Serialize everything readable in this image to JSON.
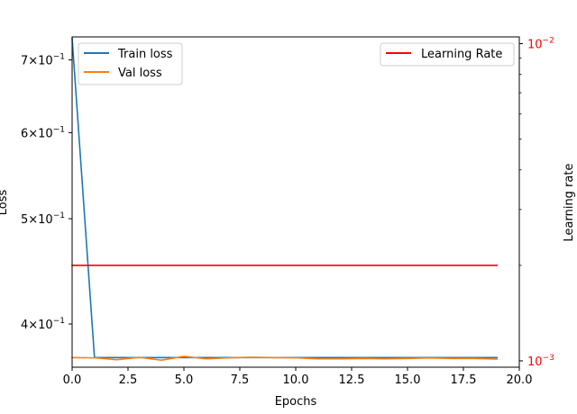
{
  "chart_data": {
    "type": "line",
    "title": "",
    "xlabel": "Epochs",
    "ylabel": "Loss",
    "y2label": "Learning rate",
    "xlim": [
      0,
      20
    ],
    "ylim": [
      0.365,
      0.735
    ],
    "yscale": "log",
    "y2lim": [
      0.000955,
      0.0105
    ],
    "y2scale": "log",
    "x_ticks": [
      "0.0",
      "2.5",
      "5.0",
      "7.5",
      "10.0",
      "12.5",
      "15.0",
      "17.5",
      "20.0"
    ],
    "x_tick_values": [
      0,
      2.5,
      5,
      7.5,
      10,
      12.5,
      15,
      17.5,
      20
    ],
    "y_ticks": [
      {
        "value": 0.7,
        "mantissa": "7",
        "times": "×",
        "base": "10",
        "exp": "−1"
      },
      {
        "value": 0.6,
        "mantissa": "6",
        "times": "×",
        "base": "10",
        "exp": "−1"
      },
      {
        "value": 0.5,
        "mantissa": "5",
        "times": "×",
        "base": "10",
        "exp": "−1"
      },
      {
        "value": 0.4,
        "mantissa": "4",
        "times": "×",
        "base": "10",
        "exp": "−1"
      }
    ],
    "y2_ticks": [
      {
        "value": 0.01,
        "base": "10",
        "exp": "−2"
      },
      {
        "value": 0.001,
        "base": "10",
        "exp": "−3"
      }
    ],
    "y2_minor_ticks": [
      0.002,
      0.003,
      0.004,
      0.005,
      0.006,
      0.007,
      0.008,
      0.009
    ],
    "x": [
      0,
      1,
      2,
      3,
      4,
      5,
      6,
      7,
      8,
      9,
      10,
      11,
      12,
      13,
      14,
      15,
      16,
      17,
      18,
      19
    ],
    "series": [
      {
        "name": "Train loss",
        "axis": "left",
        "color": "#1f77b4",
        "values": [
          0.733,
          0.3725,
          0.3725,
          0.3725,
          0.3725,
          0.3725,
          0.3725,
          0.3725,
          0.3725,
          0.3725,
          0.3725,
          0.3725,
          0.3725,
          0.3725,
          0.3725,
          0.3725,
          0.3725,
          0.3725,
          0.3725,
          0.3725
        ]
      },
      {
        "name": "Val loss",
        "axis": "left",
        "color": "#ff7f0e",
        "values": [
          0.3725,
          0.3723,
          0.3708,
          0.3727,
          0.3705,
          0.3735,
          0.3715,
          0.3723,
          0.3728,
          0.3725,
          0.3723,
          0.3715,
          0.3715,
          0.3718,
          0.3715,
          0.3718,
          0.3722,
          0.3718,
          0.3718,
          0.3713
        ]
      },
      {
        "name": "Learning Rate",
        "axis": "right",
        "color": "#ff0000",
        "values": [
          0.002,
          0.002,
          0.002,
          0.002,
          0.002,
          0.002,
          0.002,
          0.002,
          0.002,
          0.002,
          0.002,
          0.002,
          0.002,
          0.002,
          0.002,
          0.002,
          0.002,
          0.002,
          0.002,
          0.002
        ]
      }
    ],
    "legend_left": {
      "placement": "upper-left",
      "entries": [
        "Train loss",
        "Val loss"
      ]
    },
    "legend_right": {
      "placement": "upper-right",
      "entries": [
        "Learning Rate"
      ]
    },
    "right_axis_color": "#ff0000",
    "grid": false
  }
}
